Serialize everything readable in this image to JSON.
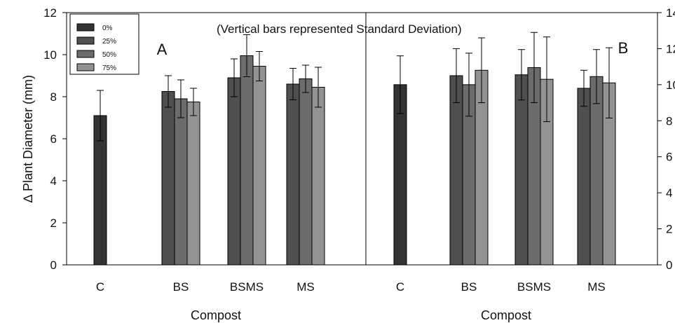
{
  "chart_data": [
    {
      "panel_label": "A",
      "type": "bar",
      "categories": [
        "C",
        "BS",
        "BSMS",
        "MS"
      ],
      "xlabel": "Compost",
      "ylabel": "∆ Plant Diameter (mm)",
      "ylim": [
        0,
        12
      ],
      "yticks": [
        "0",
        "2",
        "4",
        "6",
        "8",
        "10",
        "12"
      ],
      "series": [
        {
          "name": "0%",
          "values": [
            7.1,
            null,
            null,
            null
          ],
          "errors": [
            1.2,
            null,
            null,
            null
          ]
        },
        {
          "name": "25%",
          "values": [
            null,
            8.25,
            8.9,
            8.6
          ],
          "errors": [
            null,
            0.75,
            0.9,
            0.75
          ]
        },
        {
          "name": "50%",
          "values": [
            null,
            7.9,
            9.95,
            8.85
          ],
          "errors": [
            null,
            0.9,
            1.0,
            0.65
          ]
        },
        {
          "name": "75%",
          "values": [
            null,
            7.75,
            9.45,
            8.45
          ],
          "errors": [
            null,
            0.65,
            0.7,
            0.95
          ]
        }
      ]
    },
    {
      "panel_label": "B",
      "type": "bar",
      "categories": [
        "C",
        "BS",
        "BSMS",
        "MS"
      ],
      "xlabel": "Compost",
      "ylim": [
        0,
        14
      ],
      "yticks": [
        "0",
        "2",
        "4",
        "6",
        "8",
        "10",
        "12",
        "14"
      ],
      "series": [
        {
          "name": "0%",
          "values": [
            10.0,
            null,
            null,
            null
          ],
          "errors": [
            1.6,
            null,
            null,
            null
          ]
        },
        {
          "name": "25%",
          "values": [
            null,
            10.5,
            10.55,
            9.8
          ],
          "errors": [
            null,
            1.5,
            1.4,
            1.0
          ]
        },
        {
          "name": "50%",
          "values": [
            null,
            10.0,
            10.95,
            10.45
          ],
          "errors": [
            null,
            1.75,
            1.95,
            1.5
          ]
        },
        {
          "name": "75%",
          "values": [
            null,
            10.8,
            10.3,
            10.1
          ],
          "errors": [
            null,
            1.8,
            2.35,
            1.95
          ]
        }
      ]
    }
  ],
  "annotation": "(Vertical bars represented Standard Deviation)",
  "legend": [
    {
      "label": "0%",
      "color": "#333333"
    },
    {
      "label": "25%",
      "color": "#4f4f4f"
    },
    {
      "label": "50%",
      "color": "#6c6c6c"
    },
    {
      "label": "75%",
      "color": "#939393"
    }
  ]
}
